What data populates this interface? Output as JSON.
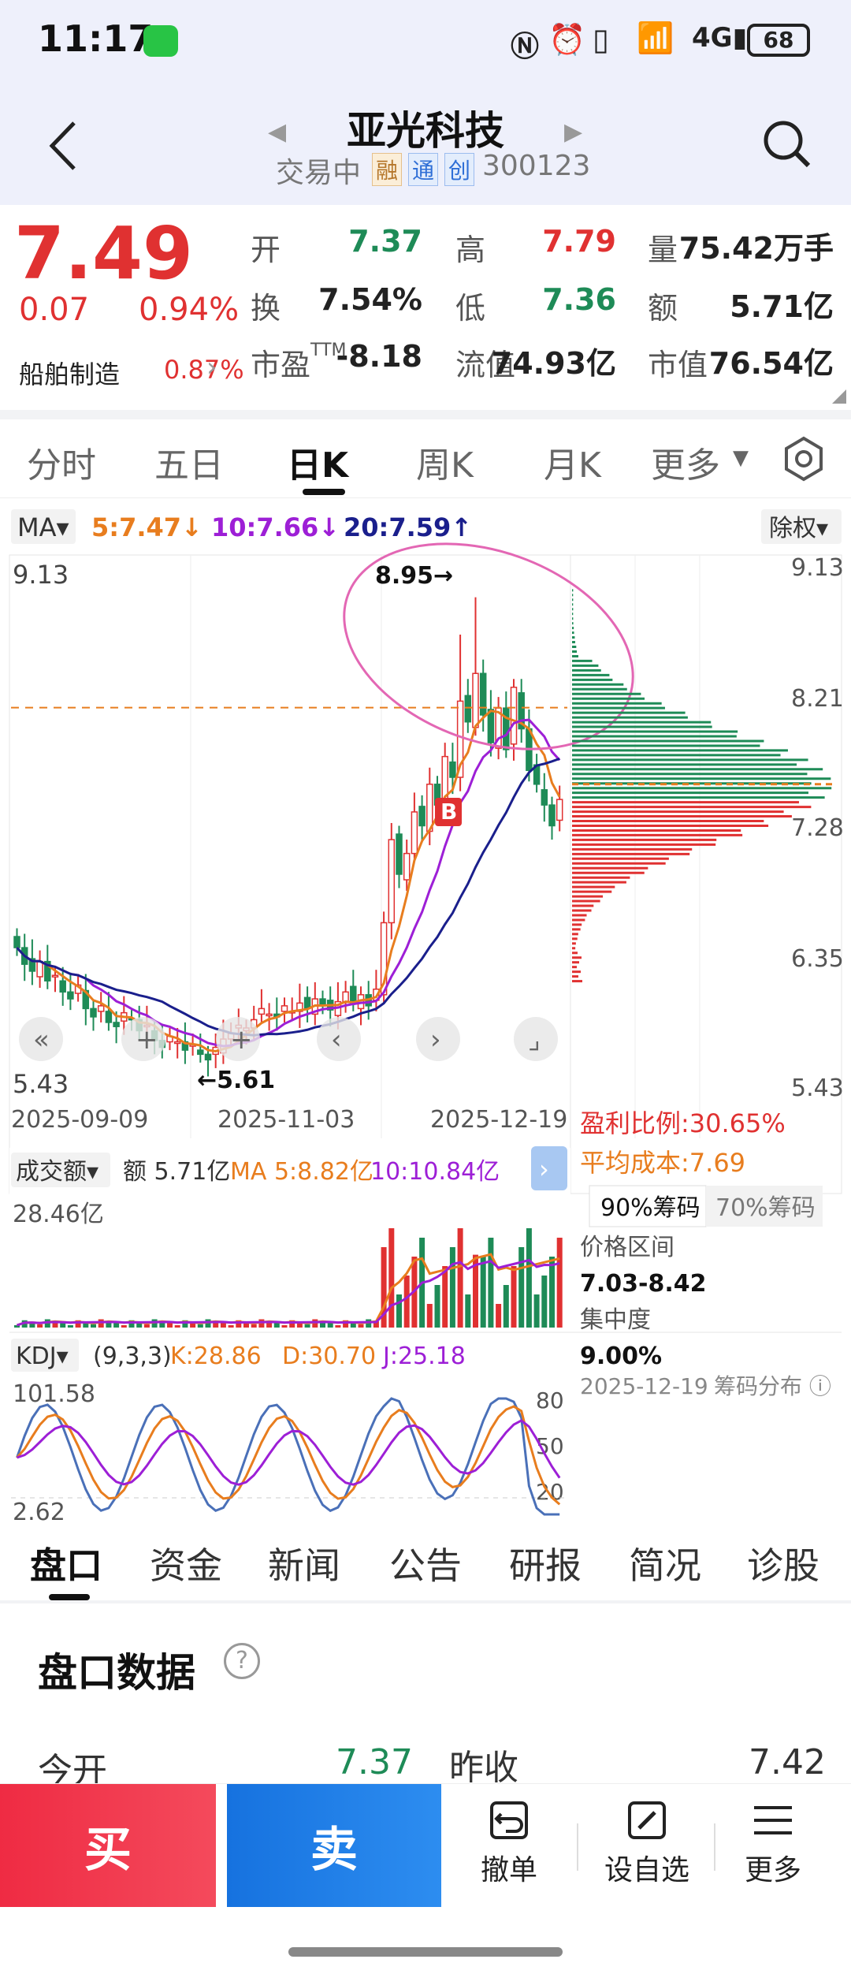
{
  "status": {
    "time": "11:17",
    "battery": "68"
  },
  "header": {
    "title": "亚光科技",
    "trading": "交易中",
    "badges": [
      "融",
      "通",
      "创"
    ],
    "code": "300123"
  },
  "quote": {
    "price": "7.49",
    "change": "0.07",
    "pct": "0.94%",
    "industry": "船舶制造",
    "industry_pct": "0.87%",
    "rows": [
      [
        {
          "l": "开",
          "v": "7.37",
          "c": "green"
        },
        {
          "l": "高",
          "v": "7.79",
          "c": "red"
        },
        {
          "l": "量",
          "v": "75.42万手",
          "c": "dark"
        }
      ],
      [
        {
          "l": "换",
          "v": "7.54%",
          "c": "dark"
        },
        {
          "l": "低",
          "v": "7.36",
          "c": "green"
        },
        {
          "l": "额",
          "v": "5.71亿",
          "c": "dark"
        }
      ],
      [
        {
          "l": "市盈TTM",
          "v": "-8.18",
          "c": "dark"
        },
        {
          "l": "流值",
          "v": "74.93亿",
          "c": "dark"
        },
        {
          "l": "市值",
          "v": "76.54亿",
          "c": "dark"
        }
      ]
    ]
  },
  "tabs": [
    "分时",
    "五日",
    "日K",
    "周K",
    "月K",
    "更多"
  ],
  "ma": {
    "label": "MA",
    "ma5": "5:7.47↓",
    "ma10": "10:7.66↓",
    "ma20": "20:7.59↑",
    "fq": "除权"
  },
  "price_axis": {
    "left_top": "9.13",
    "left_bottom": "5.43",
    "right": [
      "9.13",
      "8.21",
      "7.28",
      "6.35",
      "5.43"
    ]
  },
  "annotations": {
    "high": "8.95→",
    "low": "←5.61",
    "buy": "B"
  },
  "dates": [
    "2025-09-09",
    "2025-11-03",
    "2025-12-19"
  ],
  "chips": {
    "profit": "盈利比例:30.65%",
    "avg_cost": "平均成本:7.69",
    "tab90": "90%筹码",
    "tab70": "70%筹码",
    "range_label": "价格区间",
    "range": "7.03-8.42",
    "conc_label": "集中度",
    "conc": "9.00%",
    "date": "2025-12-19",
    "dist": "筹码分布"
  },
  "volume": {
    "label": "成交额",
    "amount": "额 5.71亿",
    "ma5": "MA 5:8.82亿",
    "ma10": "10:10.84亿",
    "max": "28.46亿"
  },
  "kdj": {
    "label": "KDJ",
    "params": "(9,3,3)",
    "k": "K:28.86",
    "d": "D:30.70",
    "j": "J:25.18",
    "max": "101.58",
    "min": "2.62",
    "levels": [
      "80",
      "50",
      "20"
    ]
  },
  "bottom_tabs": [
    "盘口",
    "资金",
    "新闻",
    "公告",
    "研报",
    "简况",
    "诊股"
  ],
  "panel": {
    "title": "盘口数据",
    "open_label": "今开",
    "open": "7.37",
    "prev_label": "昨收",
    "prev": "7.42"
  },
  "actions": {
    "buy": "买",
    "sell": "卖",
    "cancel": "撤单",
    "watch": "设自选",
    "more": "更多"
  },
  "colors": {
    "up": "#e03131",
    "down": "#1e8b57",
    "ma5": "#e87d1e",
    "ma10": "#9d1fd6",
    "ma20": "#1a1f8c"
  }
}
